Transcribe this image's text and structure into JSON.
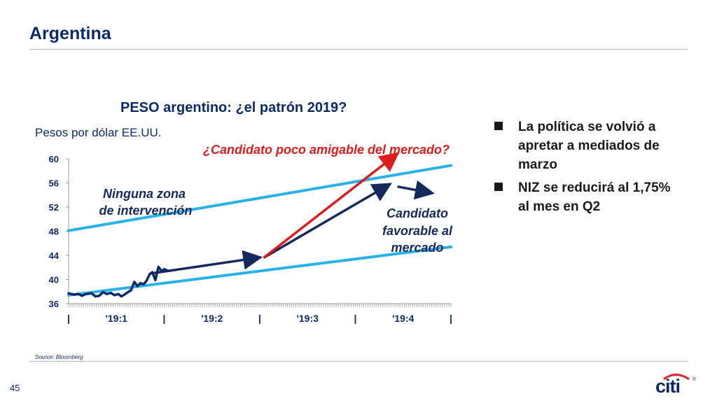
{
  "slide": {
    "title": "Argentina",
    "source": "Source: Bloomberg",
    "page_number": "45",
    "logo_text": "citi",
    "logo_mark": "®"
  },
  "bullets": [
    "La política se volvió a apretar a mediados de marzo",
    "NIZ se reducirá al 1,75% al mes en Q2"
  ],
  "colors": {
    "title": "#0b2a6b",
    "line": "#0b2a6b",
    "channel": "#29b2e8",
    "arrow_navy": "#142a5c",
    "arrow_red": "#e01b1b",
    "logo_arc": "#e41f26"
  },
  "chart_data": {
    "type": "line",
    "title": "PESO argentino: ¿el patrón 2019?",
    "ylabel": "Pesos por dólar EE.UU.",
    "ylim": [
      36,
      60
    ],
    "yticks": [
      36,
      40,
      44,
      48,
      52,
      56,
      60
    ],
    "xlim": [
      0,
      100
    ],
    "x_tick_labels": [
      "|",
      "'19:1",
      "|",
      "'19:2",
      "|",
      "'19:3",
      "|",
      "'19:4",
      "|"
    ],
    "x_tick_positions": [
      0,
      12.5,
      25,
      37.5,
      50,
      62.5,
      75,
      87.5,
      100
    ],
    "series": [
      {
        "x": [
          0,
          1.5,
          2.5,
          3.5,
          4.5,
          6,
          7,
          8,
          9,
          10,
          11,
          12,
          13,
          13.8,
          14.6,
          15.5,
          16.3,
          17.2,
          18,
          18.8,
          19.6,
          20.4,
          21.2,
          21.9,
          22.7,
          23.5,
          24.3,
          25,
          25.8
        ],
        "y": [
          37.7,
          37.5,
          37.6,
          37.3,
          37.6,
          37.7,
          37.2,
          37.3,
          37.9,
          37.6,
          37.8,
          37.4,
          37.6,
          37.2,
          37.5,
          37.9,
          38.2,
          39.6,
          38.9,
          39.4,
          39.2,
          39.8,
          40.9,
          41.2,
          39.9,
          42.1,
          41.4,
          41.7,
          41.5
        ]
      }
    ],
    "channel_lines": [
      {
        "name": "upper",
        "start": [
          0,
          48.1
        ],
        "end": [
          100,
          58.9
        ]
      },
      {
        "name": "lower",
        "start": [
          0,
          37.4
        ],
        "end": [
          100,
          45.4
        ]
      }
    ],
    "arrows": [
      {
        "color": "navy",
        "start": [
          21.5,
          41.0
        ],
        "end": [
          49.5,
          43.6
        ]
      },
      {
        "color": "navy",
        "start": [
          51,
          43.6
        ],
        "end": [
          83.5,
          55.6
        ]
      },
      {
        "color": "red",
        "start": [
          51,
          43.6
        ],
        "end": [
          85.5,
          60.6
        ]
      },
      {
        "color": "navy",
        "start": [
          86,
          55.4
        ],
        "end": [
          94.5,
          54.4
        ]
      }
    ],
    "annotations": {
      "red_note": "¿Candidato poco amigable del mercado?",
      "left_note_1": "Ninguna zona",
      "left_note_2": "de intervención",
      "right_note_1": "Candidato",
      "right_note_2": "favorable al",
      "right_note_3": "mercado"
    },
    "grid": false,
    "legend": "none"
  }
}
